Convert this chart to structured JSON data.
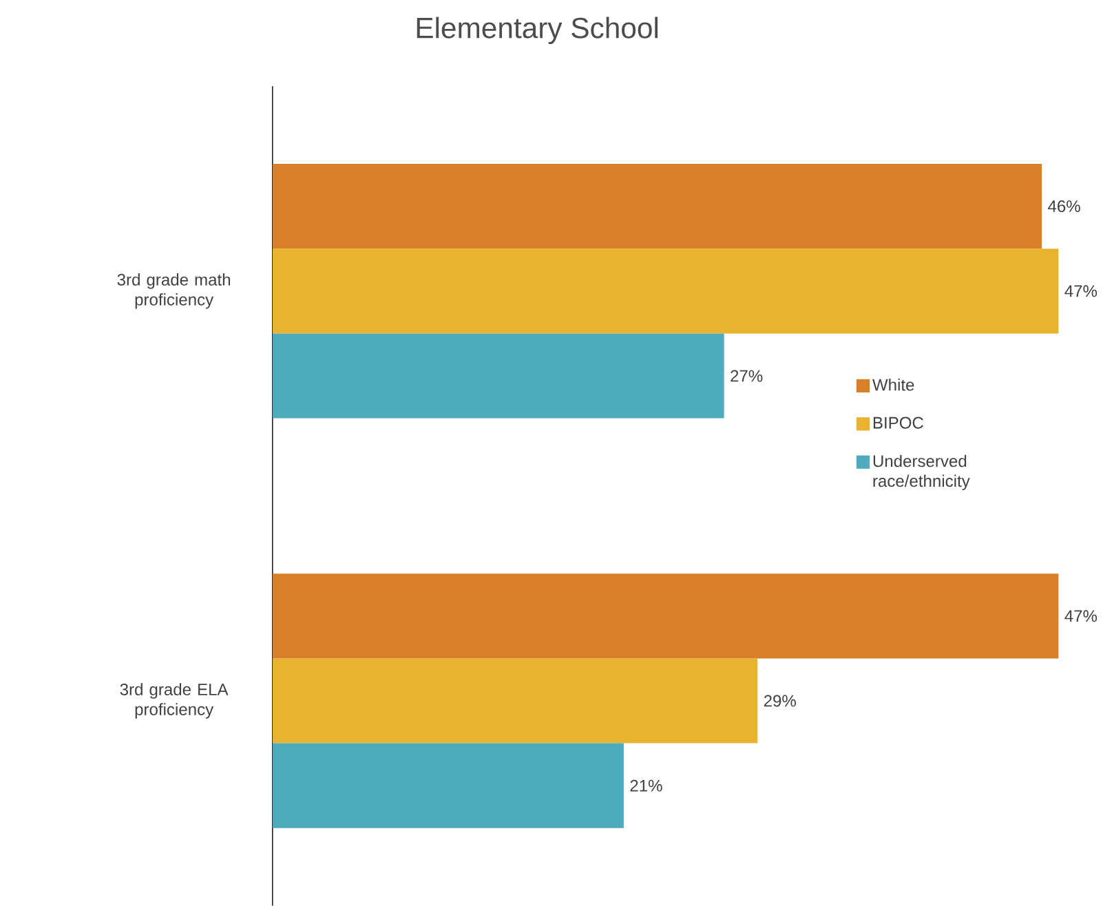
{
  "chart_data": {
    "type": "bar",
    "orientation": "horizontal",
    "title": "Elementary School",
    "categories": [
      "3rd grade math proficiency",
      "3rd grade ELA proficiency"
    ],
    "series": [
      {
        "name": "White",
        "color": "#d97f2a",
        "values": [
          46,
          47
        ],
        "value_labels": [
          "46%",
          "47%"
        ]
      },
      {
        "name": "BIPOC",
        "color": "#e9b22f",
        "values": [
          47,
          29
        ],
        "value_labels": [
          "47%",
          "29%"
        ]
      },
      {
        "name": "Underserved race/ethnicity",
        "color": "#4eaabd",
        "values": [
          27,
          21
        ],
        "value_labels": [
          "27%",
          "21%"
        ]
      }
    ],
    "legend": "right"
  }
}
